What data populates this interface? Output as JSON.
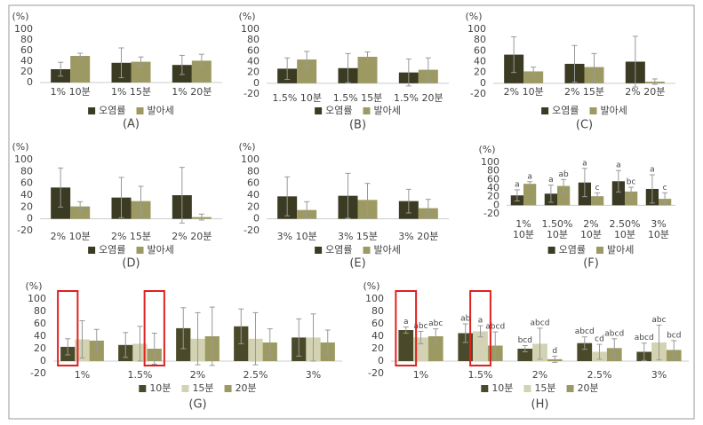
{
  "chart_data": [
    {
      "type": "bar",
      "label": "(A)",
      "y_label": "(%)",
      "categories": [
        "1% 10분",
        "1% 15분",
        "1% 20분"
      ],
      "series": [
        {
          "name": "오염률",
          "color": "#3b3a22",
          "values": [
            25,
            37,
            33
          ],
          "errors": [
            13,
            28,
            18
          ]
        },
        {
          "name": "발아세",
          "color": "#9c9a62",
          "values": [
            50,
            39,
            41
          ],
          "errors": [
            5,
            9,
            12
          ]
        }
      ],
      "ylim": [
        0,
        100
      ],
      "yticks": [
        0,
        20,
        40,
        60,
        80,
        100
      ]
    },
    {
      "type": "bar",
      "label": "(B)",
      "y_label": "(%)",
      "categories": [
        "1.5% 10분",
        "1.5% 15분",
        "1.5% 20분"
      ],
      "series": [
        {
          "name": "오염률",
          "color": "#3b3a22",
          "values": [
            27,
            28,
            20
          ],
          "errors": [
            20,
            27,
            25
          ]
        },
        {
          "name": "발아세",
          "color": "#9c9a62",
          "values": [
            44,
            49,
            25
          ],
          "errors": [
            15,
            9,
            22
          ]
        }
      ],
      "ylim": [
        -20,
        100
      ],
      "yticks": [
        -20,
        0,
        20,
        40,
        60,
        80,
        100
      ]
    },
    {
      "type": "bar",
      "label": "(C)",
      "y_label": "(%)",
      "categories": [
        "2% 10분",
        "2% 15분",
        "2% 20분"
      ],
      "series": [
        {
          "name": "오염률",
          "color": "#3b3a22",
          "values": [
            53,
            36,
            40
          ],
          "errors": [
            33,
            34,
            47
          ]
        },
        {
          "name": "발아세",
          "color": "#9c9a62",
          "values": [
            22,
            30,
            3
          ],
          "errors": [
            8,
            25,
            5
          ]
        }
      ],
      "ylim": [
        -20,
        100
      ],
      "yticks": [
        -20,
        0,
        20,
        40,
        60,
        80,
        100
      ]
    },
    {
      "type": "bar",
      "label": "(D)",
      "y_label": "(%)",
      "categories": [
        "2% 10분",
        "2% 15분",
        "2% 20분"
      ],
      "series": [
        {
          "name": "오염률",
          "color": "#3b3a22",
          "values": [
            53,
            36,
            40
          ],
          "errors": [
            33,
            34,
            47
          ]
        },
        {
          "name": "발아세",
          "color": "#9c9a62",
          "values": [
            21,
            30,
            3
          ],
          "errors": [
            8,
            25,
            5
          ]
        }
      ],
      "ylim": [
        -20,
        100
      ],
      "yticks": [
        -20,
        0,
        20,
        40,
        60,
        80,
        100
      ]
    },
    {
      "type": "bar",
      "label": "(E)",
      "y_label": "(%)",
      "categories": [
        "3% 10분",
        "3% 15분",
        "3% 20분"
      ],
      "series": [
        {
          "name": "오염률",
          "color": "#3b3a22",
          "values": [
            38,
            39,
            30
          ],
          "errors": [
            33,
            38,
            20
          ]
        },
        {
          "name": "발아세",
          "color": "#9c9a62",
          "values": [
            15,
            32,
            18
          ],
          "errors": [
            14,
            28,
            15
          ]
        }
      ],
      "ylim": [
        -20,
        100
      ],
      "yticks": [
        -20,
        0,
        20,
        40,
        60,
        80,
        100
      ]
    },
    {
      "type": "bar",
      "label": "(F)",
      "y_label": "(%)",
      "categories": [
        "1%\n10분",
        "1.50%\n10분",
        "2%\n10분",
        "2.50%\n10분",
        "3%\n10분"
      ],
      "series": [
        {
          "name": "오염률",
          "color": "#3b3a22",
          "values": [
            23,
            27,
            53,
            56,
            38
          ],
          "errors": [
            13,
            20,
            33,
            25,
            33
          ],
          "letters": [
            "a",
            "a",
            "a",
            "a",
            "a"
          ]
        },
        {
          "name": "발아세",
          "color": "#9c9a62",
          "values": [
            50,
            45,
            21,
            32,
            15
          ],
          "errors": [
            5,
            15,
            8,
            10,
            14
          ],
          "letters": [
            "a",
            "ab",
            "c",
            "bc",
            "c"
          ]
        }
      ],
      "ylim": [
        -20,
        100
      ],
      "yticks": [
        -20,
        0,
        20,
        40,
        60,
        80,
        100
      ]
    },
    {
      "type": "bar",
      "label": "(G)",
      "y_label": "(%)",
      "categories": [
        "1%",
        "1.5%",
        "2%",
        "2.5%",
        "3%"
      ],
      "series": [
        {
          "name": "10분",
          "color": "#4a4a2a",
          "values": [
            23,
            26,
            53,
            56,
            38
          ],
          "errors": [
            13,
            20,
            33,
            28,
            30
          ]
        },
        {
          "name": "15분",
          "color": "#d3d2b2",
          "values": [
            35,
            28,
            36,
            36,
            38
          ],
          "errors": [
            30,
            28,
            42,
            42,
            38
          ]
        },
        {
          "name": "20분",
          "color": "#9c9a62",
          "values": [
            33,
            20,
            40,
            30,
            30
          ],
          "errors": [
            18,
            25,
            47,
            22,
            20
          ]
        }
      ],
      "ylim": [
        -20,
        100
      ],
      "yticks": [
        -20,
        0,
        20,
        40,
        60,
        80,
        100
      ],
      "highlights": [
        [
          0,
          0
        ],
        [
          2,
          1
        ]
      ]
    },
    {
      "type": "bar",
      "label": "(H)",
      "y_label": "(%)",
      "categories": [
        "1%",
        "1.5%",
        "2%",
        "2.5%",
        "3%"
      ],
      "series": [
        {
          "name": "10분",
          "color": "#4a4a2a",
          "values": [
            50,
            45,
            20,
            29,
            15
          ],
          "errors": [
            5,
            15,
            5,
            10,
            14
          ],
          "letters": [
            "a",
            "ab",
            "bcd",
            "abcd",
            "abcd"
          ]
        },
        {
          "name": "15분",
          "color": "#d3d2b2",
          "values": [
            38,
            48,
            28,
            15,
            30
          ],
          "errors": [
            10,
            9,
            25,
            12,
            28
          ],
          "letters": [
            "abc",
            "a",
            "abcd",
            "cd",
            "abc"
          ]
        },
        {
          "name": "20분",
          "color": "#9c9a62",
          "values": [
            40,
            25,
            3,
            21,
            18
          ],
          "errors": [
            12,
            22,
            5,
            15,
            15
          ],
          "letters": [
            "abc",
            "abcd",
            "d",
            "abcd",
            "bcd"
          ]
        }
      ],
      "ylim": [
        -20,
        100
      ],
      "yticks": [
        -20,
        0,
        20,
        40,
        60,
        80,
        100
      ],
      "highlights": [
        [
          0,
          0
        ],
        [
          1,
          1
        ]
      ]
    }
  ]
}
